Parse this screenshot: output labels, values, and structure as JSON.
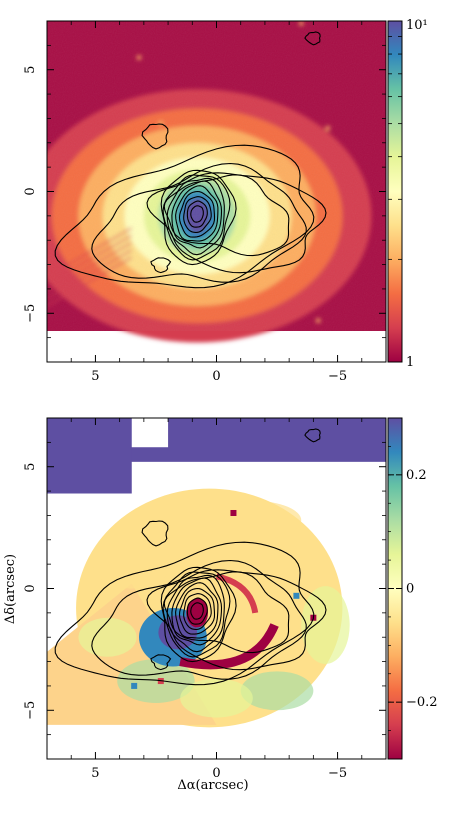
{
  "chart_data": [
    {
      "type": "heatmap",
      "title": "",
      "xlabel": "",
      "ylabel": "",
      "xlim": [
        7,
        -7
      ],
      "ylim": [
        -7,
        7
      ],
      "x_ticks": [
        5,
        0,
        -5
      ],
      "y_ticks": [
        5,
        0,
        -5
      ],
      "x_tick_labels": [
        "5",
        "0",
        "−5"
      ],
      "y_tick_labels": [
        "5",
        "0",
        "−5"
      ],
      "colorbar": {
        "scale": "log",
        "range": [
          1,
          10
        ],
        "tick_labels": [
          "1",
          "10¹"
        ],
        "colormap": [
          "#9e0142",
          "#d53e4f",
          "#f46d43",
          "#fdae61",
          "#fee08b",
          "#ffffbf",
          "#e6f598",
          "#abdda4",
          "#66c2a5",
          "#3288bd",
          "#5e4fa2"
        ]
      },
      "data_extent": {
        "x": [
          7,
          -7
        ],
        "y": [
          -5.7,
          7
        ]
      },
      "contours": "black intensity contours around the nucleus (0.8, -1.0)",
      "nucleus": [
        0.8,
        -1.0
      ]
    },
    {
      "type": "heatmap",
      "title": "",
      "xlabel": "Δα(arcsec)",
      "ylabel": "Δδ(arcsec)",
      "xlim": [
        7,
        -7
      ],
      "ylim": [
        -7,
        7
      ],
      "x_ticks": [
        5,
        0,
        -5
      ],
      "y_ticks": [
        5,
        0,
        -5
      ],
      "x_tick_labels": [
        "5",
        "0",
        "−5"
      ],
      "y_tick_labels": [
        "5",
        "0",
        "−5"
      ],
      "colorbar": {
        "scale": "linear",
        "range": [
          -0.3,
          0.3
        ],
        "ticks": [
          0.2,
          0,
          -0.2
        ],
        "tick_labels": [
          "0.2",
          "0",
          "−0.2"
        ],
        "colormap": [
          "#9e0142",
          "#d53e4f",
          "#f46d43",
          "#fdae61",
          "#fee08b",
          "#ffffbf",
          "#e6f598",
          "#abdda4",
          "#66c2a5",
          "#3288bd",
          "#5e4fa2"
        ]
      },
      "contours": "same black intensity contours overlaid",
      "nucleus": [
        0.8,
        -1.0
      ]
    }
  ]
}
